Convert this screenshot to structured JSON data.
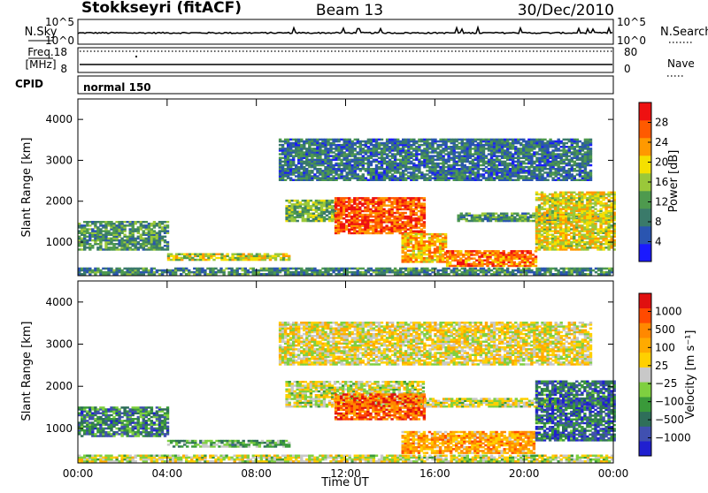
{
  "header": {
    "station": "Stokkseyri (fitACF)",
    "beam": "Beam 13",
    "date": "30/Dec/2010"
  },
  "top_panels": {
    "nsky_label": "N.Sky",
    "nsky_ticks": [
      "10^5",
      "10^0"
    ],
    "nsearch_label": "N.Search",
    "freq_label_1": "Freq.",
    "freq_label_2": "[MHz]",
    "freq_ticks": [
      "18",
      "8"
    ],
    "nave_ticks": [
      "80",
      "0"
    ],
    "nave_label": "Nave",
    "cpid_label": "CPID",
    "cpid_value": "normal 150"
  },
  "colors": {
    "power_scale": [
      "#1a1aff",
      "#2a55b0",
      "#3a7a6a",
      "#4e9a4e",
      "#9ac83a",
      "#f5e000",
      "#ff9900",
      "#ff5a00",
      "#ee1111"
    ],
    "velocity_scale": [
      "#2020d0",
      "#4050b0",
      "#2f6f5a",
      "#3a9a3a",
      "#7fd040",
      "#c8c8c8",
      "#ffd000",
      "#ffaa00",
      "#ff8800",
      "#ff4a00",
      "#e01010"
    ]
  },
  "chart_data": [
    {
      "type": "heatmap",
      "name": "power",
      "ylabel": "Slant Range [km]",
      "yticks": [
        "1000",
        "2000",
        "3000",
        "4000"
      ],
      "ylim": [
        180,
        4500
      ],
      "xlim": [
        0,
        24
      ],
      "xticks": [
        "00:00",
        "04:00",
        "08:00",
        "12:00",
        "16:00",
        "20:00",
        "00:00"
      ],
      "colorbar": {
        "label": "Power [dB]",
        "min": 0,
        "max": 32,
        "ticks": [
          "4",
          "8",
          "12",
          "16",
          "20",
          "24",
          "28"
        ]
      },
      "regions": [
        {
          "t0": 0.0,
          "t1": 4.0,
          "r0": 800,
          "r1": 1500,
          "level": 0.35
        },
        {
          "t0": 4.0,
          "t1": 9.5,
          "r0": 550,
          "r1": 700,
          "level": 0.55
        },
        {
          "t0": 9.3,
          "t1": 11.5,
          "r0": 1500,
          "r1": 2000,
          "level": 0.45
        },
        {
          "t0": 11.5,
          "t1": 15.5,
          "r0": 1200,
          "r1": 2100,
          "level": 0.85
        },
        {
          "t0": 14.5,
          "t1": 16.5,
          "r0": 500,
          "r1": 1200,
          "level": 0.7
        },
        {
          "t0": 16.5,
          "t1": 20.5,
          "r0": 400,
          "r1": 800,
          "level": 0.8
        },
        {
          "t0": 17.0,
          "t1": 24.0,
          "r0": 1500,
          "r1": 1700,
          "level": 0.35
        },
        {
          "t0": 20.5,
          "t1": 24.0,
          "r0": 800,
          "r1": 2200,
          "level": 0.6
        },
        {
          "t0": 9.0,
          "t1": 23.0,
          "r0": 2500,
          "r1": 3500,
          "level": 0.25
        },
        {
          "t0": 0.0,
          "t1": 24.0,
          "r0": 200,
          "r1": 350,
          "level": 0.3
        }
      ]
    },
    {
      "type": "heatmap",
      "name": "velocity",
      "ylabel": "Slant Range [km]",
      "yticks": [
        "1000",
        "2000",
        "3000",
        "4000"
      ],
      "ylim": [
        180,
        4500
      ],
      "xlim": [
        0,
        24
      ],
      "xticks": [
        "00:00",
        "04:00",
        "08:00",
        "12:00",
        "16:00",
        "20:00",
        "00:00"
      ],
      "xlabel": "Time UT",
      "colorbar": {
        "label": "Velocity [m s⁻¹]",
        "ticks": [
          "1000",
          "500",
          "100",
          "25",
          "−25",
          "−100",
          "−500",
          "−1000"
        ]
      },
      "regions": [
        {
          "t0": 0.0,
          "t1": 4.0,
          "r0": 800,
          "r1": 1500,
          "level": 0.25
        },
        {
          "t0": 4.0,
          "t1": 9.5,
          "r0": 550,
          "r1": 700,
          "level": 0.35
        },
        {
          "t0": 9.3,
          "t1": 15.5,
          "r0": 1500,
          "r1": 2100,
          "level": 0.5
        },
        {
          "t0": 11.5,
          "t1": 15.5,
          "r0": 1200,
          "r1": 1800,
          "level": 0.85
        },
        {
          "t0": 14.5,
          "t1": 20.5,
          "r0": 400,
          "r1": 900,
          "level": 0.7
        },
        {
          "t0": 15.5,
          "t1": 24.0,
          "r0": 1500,
          "r1": 1700,
          "level": 0.5
        },
        {
          "t0": 20.5,
          "t1": 24.0,
          "r0": 700,
          "r1": 2100,
          "level": 0.2
        },
        {
          "t0": 9.0,
          "t1": 23.0,
          "r0": 2500,
          "r1": 3500,
          "level": 0.55
        },
        {
          "t0": 0.0,
          "t1": 24.0,
          "r0": 200,
          "r1": 350,
          "level": 0.5
        }
      ]
    }
  ]
}
